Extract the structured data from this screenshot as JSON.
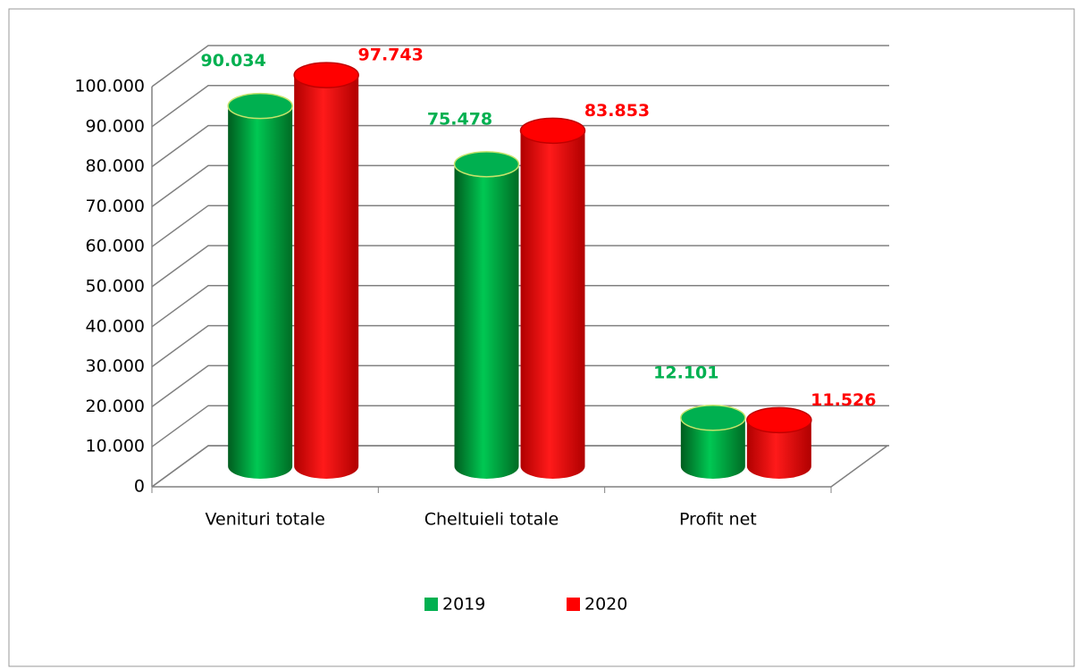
{
  "chart_data": {
    "type": "bar3d",
    "categories": [
      "Venituri totale",
      "Cheltuieli totale",
      "Profit net"
    ],
    "series": [
      {
        "name": "2019",
        "color": "#00b050",
        "values": [
          90034,
          75478,
          12101
        ],
        "value_labels": [
          "90.034",
          "75.478",
          "12.101"
        ]
      },
      {
        "name": "2020",
        "color": "#ff0000",
        "values": [
          97743,
          83853,
          11526
        ],
        "value_labels": [
          "97.743",
          "83.853",
          "11.526"
        ]
      }
    ],
    "ylim": [
      0,
      100000
    ],
    "yticks": [
      0,
      {
        "value": 10000,
        "label": "10.000"
      },
      {
        "value": 20000,
        "label": "20.000"
      },
      {
        "value": 30000,
        "label": "30.000"
      },
      {
        "value": 40000,
        "label": "40.000"
      },
      {
        "value": 50000,
        "label": "50.000"
      },
      {
        "value": 60000,
        "label": "60.000"
      },
      {
        "value": 70000,
        "label": "70.000"
      },
      {
        "value": 80000,
        "label": "80.000"
      },
      {
        "value": 90000,
        "label": "90.000"
      },
      {
        "value": 100000,
        "label": "100.000"
      }
    ],
    "grid": true,
    "legend": "bottom"
  }
}
